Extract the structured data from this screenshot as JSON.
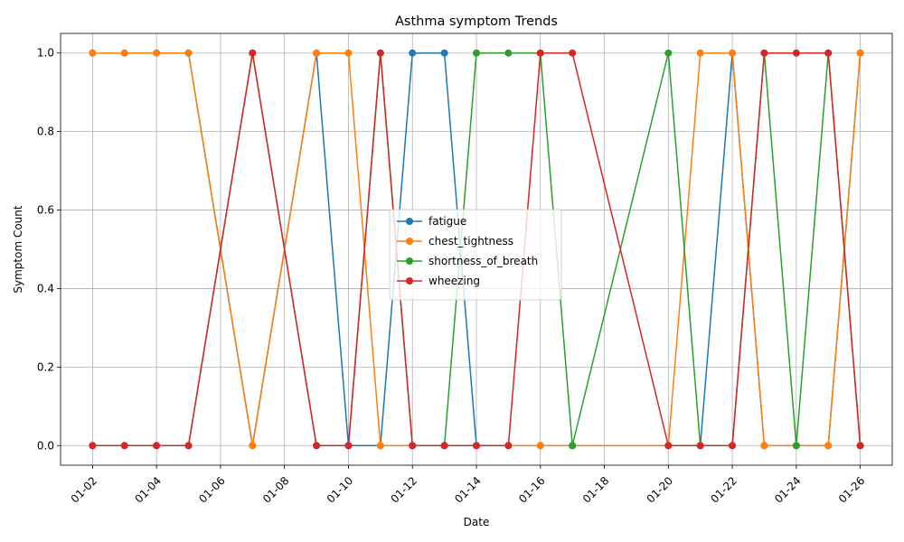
{
  "chart_data": {
    "type": "line",
    "title": "Asthma symptom Trends",
    "xlabel": "Date",
    "ylabel": "Symptom Count",
    "x": [
      "01-02",
      "01-03",
      "01-04",
      "01-05",
      "01-07",
      "01-09",
      "01-10",
      "01-11",
      "01-12",
      "01-13",
      "01-14",
      "01-15",
      "01-16",
      "01-17",
      "01-20",
      "01-21",
      "01-22",
      "01-23",
      "01-24",
      "01-25",
      "01-26"
    ],
    "x_ticks": [
      "01-02",
      "01-04",
      "01-06",
      "01-08",
      "01-10",
      "01-12",
      "01-14",
      "01-16",
      "01-18",
      "01-20",
      "01-22",
      "01-24",
      "01-26"
    ],
    "y_ticks": [
      "0.0",
      "0.2",
      "0.4",
      "0.6",
      "0.8",
      "1.0"
    ],
    "xlim": [
      "01-01",
      "01-27"
    ],
    "ylim": [
      -0.05,
      1.05
    ],
    "grid": true,
    "legend_position": "center",
    "series": [
      {
        "name": "fatigue",
        "color": "#1f77b4",
        "values": [
          1,
          1,
          1,
          1,
          0,
          1,
          0,
          0,
          1,
          1,
          0,
          0,
          0,
          0,
          0,
          0,
          1,
          0,
          0,
          0,
          1
        ]
      },
      {
        "name": "chest_tightness",
        "color": "#ff7f0e",
        "values": [
          1,
          1,
          1,
          1,
          0,
          1,
          1,
          0,
          0,
          0,
          0,
          0,
          0,
          0,
          0,
          1,
          1,
          0,
          0,
          0,
          1
        ]
      },
      {
        "name": "shortness_of_breath",
        "color": "#2ca02c",
        "values": [
          0,
          0,
          0,
          0,
          1,
          0,
          0,
          1,
          0,
          0,
          1,
          1,
          1,
          0,
          1,
          0,
          0,
          1,
          0,
          1,
          0
        ]
      },
      {
        "name": "wheezing",
        "color": "#d62728",
        "values": [
          0,
          0,
          0,
          0,
          1,
          0,
          0,
          1,
          0,
          0,
          0,
          0,
          1,
          1,
          0,
          0,
          0,
          1,
          1,
          1,
          0
        ]
      }
    ]
  }
}
